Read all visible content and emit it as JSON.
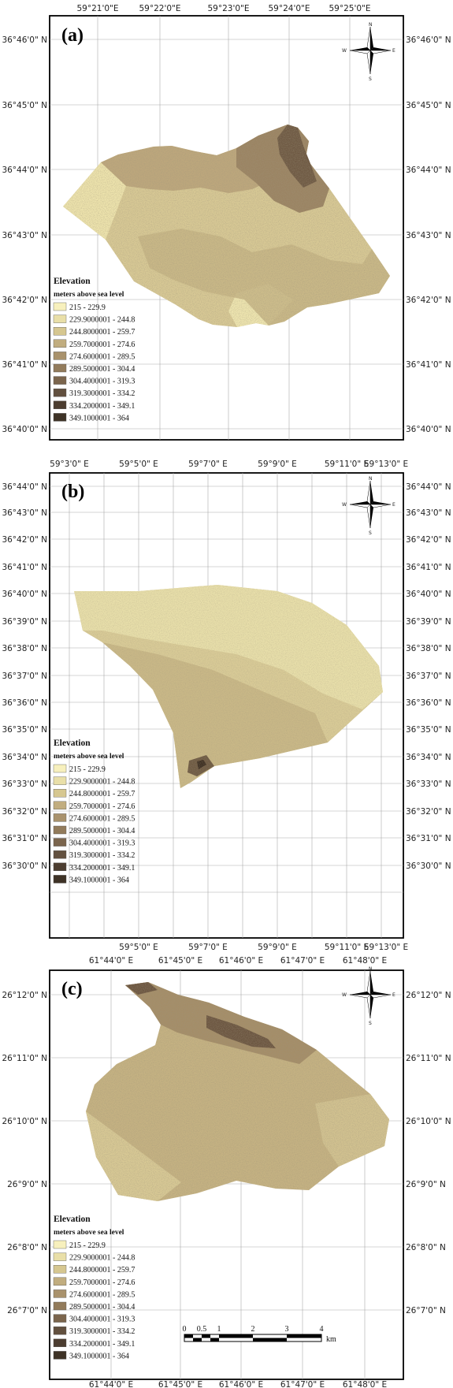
{
  "palette": [
    "#f5eeb7",
    "#e5d9a0",
    "#d0c08a",
    "#bba77a",
    "#a38c67",
    "#8d7557",
    "#786049",
    "#5f4a38",
    "#4d3b2d"
  ],
  "legend": {
    "title": "Elevation",
    "subtitle": "meters above sea level",
    "items": [
      "215 - 229.9",
      "229.9000001 - 244.8",
      "244.8000001 - 259.7",
      "259.7000001 - 274.6",
      "274.6000001 - 289.5",
      "289.5000001 - 304.4",
      "304.4000001 - 319.3",
      "319.3000001 - 334.2",
      "334.2000001 - 349.1",
      "349.1000001 - 364"
    ]
  },
  "compass": {
    "n": "N",
    "s": "S",
    "w": "W",
    "e": "E"
  },
  "maps": [
    {
      "tag": "(a)",
      "lon_labels": [
        "59°21'0\"E",
        "59°22'0\"E",
        "59°23'0\"E",
        "59°24'0\"E",
        "59°25'0\"E"
      ],
      "lat_labels": [
        "36°46'0\" N",
        "36°45'0\" N",
        "36°44'0\" N",
        "36°43'0\" N",
        "36°42'0\" N",
        "36°41'0\" N",
        "36°40'0\" N"
      ],
      "elevation_note": "lowland west, high ridge north-east"
    },
    {
      "tag": "(b)",
      "lon_labels": [
        "59°3'0\" E",
        "59°5'0\" E",
        "59°7'0\" E",
        "59°9'0\" E",
        "59°11'0\" E",
        "59°13'0\" E"
      ],
      "lat_labels": [
        "36°44'0\" N",
        "36°43'0\" N",
        "36°42'0\" N",
        "36°41'0\" N",
        "36°40'0\" N",
        "36°39'0\" N",
        "36°38'0\" N",
        "36°37'0\" N",
        "36°36'0\" N",
        "36°35'0\" N",
        "36°34'0\" N",
        "36°33'0\" N",
        "36°32'0\" N",
        "36°31'0\" N",
        "36°30'0\" N"
      ],
      "elevation_note": "mostly low, small high spot south"
    },
    {
      "tag": "(c)",
      "lon_labels": [
        "61°44'0\" E",
        "61°45'0\" E",
        "61°46'0\" E",
        "61°47'0\" E",
        "61°48'0\" E"
      ],
      "lat_labels": [
        "26°12'0\" N",
        "26°11'0\" N",
        "26°10'0\" N",
        "26°9'0\" N",
        "26°8'0\" N",
        "26°7'0\" N"
      ],
      "elevation_note": "high ridge north, moderate elsewhere",
      "scale": {
        "ticks": [
          "0",
          "0.5",
          "1",
          "2",
          "3",
          "4"
        ],
        "unit": "km"
      }
    }
  ]
}
